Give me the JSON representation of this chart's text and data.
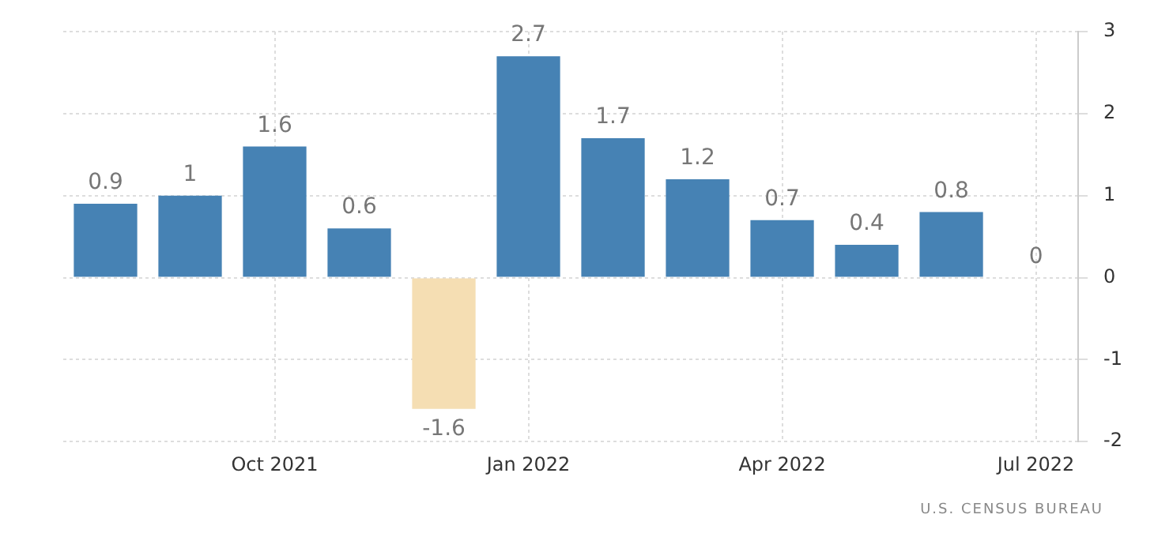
{
  "chart_data": {
    "type": "bar",
    "categories": [
      null,
      null,
      "Oct 2021",
      null,
      null,
      "Jan 2022",
      null,
      null,
      "Apr 2022",
      null,
      null,
      "Jul 2022"
    ],
    "values": [
      0.9,
      1,
      1.6,
      0.6,
      -1.6,
      2.7,
      1.7,
      1.2,
      0.7,
      0.4,
      0.8,
      0
    ],
    "colors": [
      "#4682b4",
      "#4682b4",
      "#4682b4",
      "#4682b4",
      "#f5deb3",
      "#4682b4",
      "#4682b4",
      "#4682b4",
      "#4682b4",
      "#4682b4",
      "#4682b4",
      "#4682b4"
    ],
    "ylim": [
      -2,
      3
    ],
    "yticks": [
      -2,
      -1,
      0,
      1,
      2,
      3
    ],
    "grid": true,
    "data_labels": true,
    "annotations": [
      "U.S. CENSUS BUREAU"
    ]
  }
}
